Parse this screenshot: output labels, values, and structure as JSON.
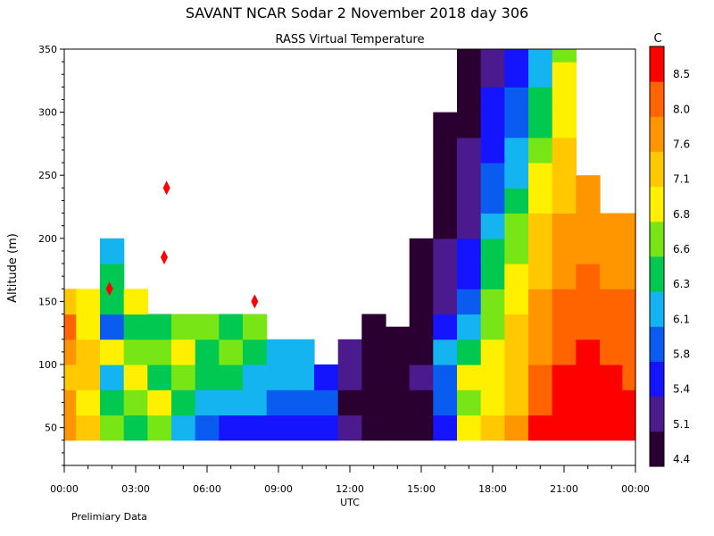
{
  "chart_data": {
    "type": "heatmap",
    "title": "SAVANT   NCAR Sodar    2 November 2018   day 306",
    "subtitle": "RASS Virtual Temperature",
    "xlabel": "UTC",
    "ylabel": "Altitude (m)",
    "xlim": [
      0,
      24
    ],
    "ylim": [
      20,
      350
    ],
    "x_ticks": [
      "00:00",
      "03:00",
      "06:00",
      "09:00",
      "12:00",
      "15:00",
      "18:00",
      "21:00",
      "00:00"
    ],
    "y_ticks": [
      50,
      100,
      150,
      200,
      250,
      300,
      350
    ],
    "colorbar": {
      "unit": "C",
      "levels": [
        4.4,
        5.1,
        5.4,
        5.8,
        6.1,
        6.3,
        6.6,
        6.8,
        7.1,
        7.6,
        8.0,
        8.5
      ],
      "labels": [
        "4.4",
        "5.1",
        "5.4",
        "5.8",
        "6.1",
        "6.3",
        "6.6",
        "6.8",
        "7.1",
        "7.6",
        "8.0",
        "8.5"
      ],
      "colors": [
        "#2a0030",
        "#4b1a8c",
        "#1414ff",
        "#0a5cf0",
        "#14b4f0",
        "#00c850",
        "#78e614",
        "#fff000",
        "#ffc800",
        "#ff9600",
        "#ff6400",
        "#ff0000"
      ]
    },
    "profiles": [
      {
        "t": 0.0,
        "top": 160,
        "values": [
          7.6,
          7.8,
          7.4,
          7.8,
          8.0,
          7.5,
          7.6,
          7.8
        ]
      },
      {
        "t": 1.0,
        "top": 160,
        "values": [
          7.2,
          6.9,
          7.5,
          7.1,
          6.8,
          6.9,
          7.2,
          6.6
        ]
      },
      {
        "t": 2.0,
        "top": 200,
        "values": [
          6.6,
          6.4,
          6.2,
          6.8,
          6.0,
          6.5,
          6.3,
          6.1
        ]
      },
      {
        "t": 3.0,
        "top": 160,
        "values": [
          6.3,
          6.6,
          6.8,
          6.6,
          6.4,
          6.8,
          6.6,
          6.9
        ]
      },
      {
        "t": 4.0,
        "top": 140,
        "values": [
          6.6,
          6.8,
          6.4,
          6.6,
          6.3,
          6.6,
          6.8
        ]
      },
      {
        "t": 5.0,
        "top": 140,
        "values": [
          6.1,
          6.3,
          6.6,
          6.8,
          6.6,
          6.3,
          6.4
        ]
      },
      {
        "t": 6.0,
        "top": 140,
        "values": [
          5.8,
          6.1,
          6.3,
          6.4,
          6.6,
          6.3,
          6.6
        ]
      },
      {
        "t": 7.0,
        "top": 140,
        "values": [
          5.6,
          6.1,
          6.3,
          6.6,
          6.4,
          6.8,
          6.6
        ]
      },
      {
        "t": 8.0,
        "top": 140,
        "values": [
          5.4,
          6.1,
          6.2,
          6.3,
          6.6,
          6.8,
          6.6
        ]
      },
      {
        "t": 9.0,
        "top": 120,
        "values": [
          5.6,
          5.9,
          6.1,
          6.1,
          6.1,
          6.2
        ]
      },
      {
        "t": 10.0,
        "top": 120,
        "values": [
          5.6,
          6.0,
          6.1,
          6.1,
          6.1,
          6.1
        ]
      },
      {
        "t": 11.0,
        "top": 100,
        "values": [
          5.4,
          5.8,
          5.6,
          5.6,
          5.7
        ]
      },
      {
        "t": 12.0,
        "top": 120,
        "values": [
          5.1,
          5.0,
          5.1,
          5.2,
          5.1,
          5.1
        ]
      },
      {
        "t": 13.0,
        "top": 140,
        "values": [
          4.6,
          4.6,
          4.8,
          4.7,
          4.6,
          4.7,
          4.8
        ]
      },
      {
        "t": 14.0,
        "top": 130,
        "values": [
          4.5,
          4.7,
          4.6,
          4.8,
          4.6,
          4.7,
          4.8
        ]
      },
      {
        "t": 15.0,
        "top": 200,
        "values": [
          4.9,
          5.0,
          5.1,
          5.0,
          4.9,
          4.8,
          4.8,
          4.7,
          4.6,
          4.6,
          4.6
        ]
      },
      {
        "t": 16.0,
        "top": 300,
        "values": [
          5.5,
          5.9,
          6.0,
          6.1,
          5.6,
          5.3,
          5.1,
          5.1,
          5.0,
          4.9,
          4.8,
          4.7,
          4.6,
          4.6,
          4.6,
          4.6
        ]
      },
      {
        "t": 17.0,
        "top": 350,
        "values": [
          6.9,
          6.6,
          6.8,
          6.4,
          6.1,
          5.9,
          5.6,
          5.4,
          5.3,
          5.2,
          5.1,
          5.1,
          5.0,
          4.9,
          4.8,
          4.8,
          4.7,
          4.6
        ]
      },
      {
        "t": 18.0,
        "top": 350,
        "values": [
          7.1,
          7.0,
          6.9,
          6.8,
          6.7,
          6.6,
          6.4,
          6.3,
          6.1,
          6.0,
          5.9,
          5.7,
          5.6,
          5.4,
          5.3,
          5.2,
          5.2,
          5.1
        ]
      },
      {
        "t": 19.0,
        "top": 350,
        "values": [
          7.8,
          7.5,
          7.3,
          7.2,
          7.1,
          7.0,
          6.9,
          6.7,
          6.6,
          6.4,
          6.2,
          6.1,
          5.9,
          5.8,
          5.7,
          5.5,
          5.4,
          5.3
        ]
      },
      {
        "t": 20.0,
        "top": 350,
        "values": [
          8.5,
          8.4,
          8.1,
          7.9,
          7.7,
          7.6,
          7.4,
          7.2,
          7.1,
          6.9,
          6.8,
          6.7,
          6.5,
          6.3,
          6.2,
          6.1,
          5.9,
          5.8
        ]
      },
      {
        "t": 21.0,
        "top": 350,
        "values": [
          8.8,
          8.7,
          8.5,
          8.4,
          8.2,
          8.1,
          7.9,
          7.8,
          7.7,
          7.5,
          7.3,
          7.2,
          7.0,
          6.9,
          6.8,
          6.6,
          6.5,
          6.4
        ]
      },
      {
        "t": 22.0,
        "top": 250,
        "values": [
          8.9,
          8.8,
          8.7,
          8.6,
          8.3,
          8.1,
          8.0,
          7.9,
          7.8,
          7.7,
          7.6,
          7.5,
          7.4
        ]
      },
      {
        "t": 23.0,
        "top": 220,
        "values": [
          8.9,
          8.8,
          8.6,
          8.4,
          8.2,
          8.0,
          7.9,
          7.7,
          7.6,
          7.5,
          7.4,
          7.6
        ]
      },
      {
        "t": 23.9,
        "top": 220,
        "values": [
          8.8,
          8.6,
          8.4,
          8.2,
          8.1,
          8.0,
          7.8,
          7.7,
          7.6,
          7.5,
          7.5,
          7.6
        ]
      }
    ],
    "spots": [
      {
        "t": 4.2,
        "alt": 185,
        "value": 8.8
      },
      {
        "t": 4.3,
        "alt": 240,
        "value": 8.8
      },
      {
        "t": 1.9,
        "alt": 160,
        "value": 8.6
      },
      {
        "t": 8.0,
        "alt": 150,
        "value": 8.6
      }
    ]
  },
  "footer_note": "Prelimiary Data"
}
